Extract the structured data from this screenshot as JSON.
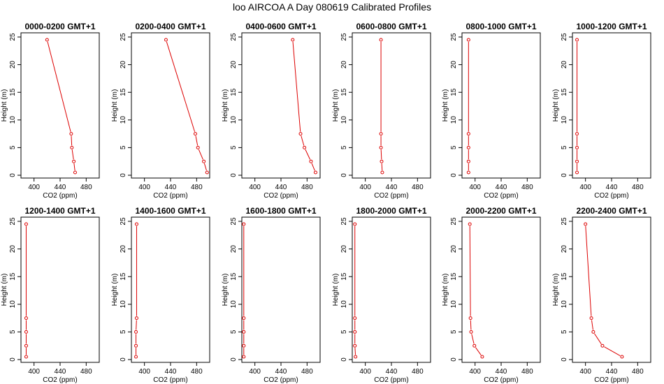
{
  "title": "loo AIRCOA A  Day 080619  Calibrated Profiles",
  "colors": {
    "series": "#dd0000",
    "frame": "#000000"
  },
  "chart_data": [
    {
      "type": "line",
      "title": "0000-0200 GMT+1",
      "xlabel": "CO2 (ppm)",
      "ylabel": "Height (m)",
      "xlim": [
        380,
        500
      ],
      "ylim": [
        0,
        25
      ],
      "xticks": [
        400,
        440,
        480
      ],
      "yticks": [
        0,
        5,
        10,
        15,
        20,
        25
      ],
      "x": [
        420,
        457,
        458,
        461,
        463
      ],
      "y": [
        24.5,
        7.5,
        5,
        2.5,
        0.5
      ]
    },
    {
      "type": "line",
      "title": "0200-0400 GMT+1",
      "xlabel": "CO2 (ppm)",
      "ylabel": "Height (m)",
      "xlim": [
        380,
        500
      ],
      "ylim": [
        0,
        25
      ],
      "xticks": [
        400,
        440,
        480
      ],
      "yticks": [
        0,
        5,
        10,
        15,
        20,
        25
      ],
      "x": [
        433,
        478,
        482,
        491,
        496
      ],
      "y": [
        24.5,
        7.5,
        5,
        2.5,
        0.5
      ]
    },
    {
      "type": "line",
      "title": "0400-0600 GMT+1",
      "xlabel": "CO2 (ppm)",
      "ylabel": "Height (m)",
      "xlim": [
        380,
        500
      ],
      "ylim": [
        0,
        25
      ],
      "xticks": [
        400,
        440,
        480
      ],
      "yticks": [
        0,
        5,
        10,
        15,
        20,
        25
      ],
      "x": [
        458,
        470,
        476,
        486,
        493
      ],
      "y": [
        24.5,
        7.5,
        5,
        2.5,
        0.5
      ]
    },
    {
      "type": "line",
      "title": "0600-0800 GMT+1",
      "xlabel": "CO2 (ppm)",
      "ylabel": "Height (m)",
      "xlim": [
        380,
        500
      ],
      "ylim": [
        0,
        25
      ],
      "xticks": [
        400,
        440,
        480
      ],
      "yticks": [
        0,
        5,
        10,
        15,
        20,
        25
      ],
      "x": [
        424,
        424,
        424,
        425,
        426
      ],
      "y": [
        24.5,
        7.5,
        5,
        2.5,
        0.5
      ]
    },
    {
      "type": "line",
      "title": "0800-1000 GMT+1",
      "xlabel": "CO2 (ppm)",
      "ylabel": "Height (m)",
      "xlim": [
        380,
        500
      ],
      "ylim": [
        0,
        25
      ],
      "xticks": [
        400,
        440,
        480
      ],
      "yticks": [
        0,
        5,
        10,
        15,
        20,
        25
      ],
      "x": [
        390,
        390,
        390,
        390,
        390
      ],
      "y": [
        24.5,
        7.5,
        5,
        2.5,
        0.5
      ]
    },
    {
      "type": "line",
      "title": "1000-1200 GMT+1",
      "xlabel": "CO2 (ppm)",
      "ylabel": "Height (m)",
      "xlim": [
        380,
        500
      ],
      "ylim": [
        0,
        25
      ],
      "xticks": [
        400,
        440,
        480
      ],
      "yticks": [
        0,
        5,
        10,
        15,
        20,
        25
      ],
      "x": [
        387,
        387,
        387,
        387,
        387
      ],
      "y": [
        24.5,
        7.5,
        5,
        2.5,
        0.5
      ]
    },
    {
      "type": "line",
      "title": "1200-1400 GMT+1",
      "xlabel": "CO2 (ppm)",
      "ylabel": "Height (m)",
      "xlim": [
        380,
        500
      ],
      "ylim": [
        0,
        25
      ],
      "xticks": [
        400,
        440,
        480
      ],
      "yticks": [
        0,
        5,
        10,
        15,
        20,
        25
      ],
      "x": [
        388,
        388,
        388,
        388,
        388
      ],
      "y": [
        24.5,
        7.5,
        5,
        2.5,
        0.5
      ]
    },
    {
      "type": "line",
      "title": "1400-1600 GMT+1",
      "xlabel": "CO2 (ppm)",
      "ylabel": "Height (m)",
      "xlim": [
        380,
        500
      ],
      "ylim": [
        0,
        25
      ],
      "xticks": [
        400,
        440,
        480
      ],
      "yticks": [
        0,
        5,
        10,
        15,
        20,
        25
      ],
      "x": [
        388,
        388,
        387,
        387,
        387
      ],
      "y": [
        24.5,
        7.5,
        5,
        2.5,
        0.5
      ]
    },
    {
      "type": "line",
      "title": "1600-1800 GMT+1",
      "xlabel": "CO2 (ppm)",
      "ylabel": "Height (m)",
      "xlim": [
        380,
        500
      ],
      "ylim": [
        0,
        25
      ],
      "xticks": [
        400,
        440,
        480
      ],
      "yticks": [
        0,
        5,
        10,
        15,
        20,
        25
      ],
      "x": [
        383,
        383,
        383,
        383,
        383
      ],
      "y": [
        24.5,
        7.5,
        5,
        2.5,
        0.5
      ]
    },
    {
      "type": "line",
      "title": "1800-2000 GMT+1",
      "xlabel": "CO2 (ppm)",
      "ylabel": "Height (m)",
      "xlim": [
        380,
        500
      ],
      "ylim": [
        0,
        25
      ],
      "xticks": [
        400,
        440,
        480
      ],
      "yticks": [
        0,
        5,
        10,
        15,
        20,
        25
      ],
      "x": [
        384,
        384,
        384,
        384,
        385
      ],
      "y": [
        24.5,
        7.5,
        5,
        2.5,
        0.5
      ]
    },
    {
      "type": "line",
      "title": "2000-2200 GMT+1",
      "xlabel": "CO2 (ppm)",
      "ylabel": "Height (m)",
      "xlim": [
        380,
        500
      ],
      "ylim": [
        0,
        25
      ],
      "xticks": [
        400,
        440,
        480
      ],
      "yticks": [
        0,
        5,
        10,
        15,
        20,
        25
      ],
      "x": [
        392,
        393,
        394,
        399,
        411
      ],
      "y": [
        24.5,
        7.5,
        5,
        2.5,
        0.5
      ]
    },
    {
      "type": "line",
      "title": "2200-2400 GMT+1",
      "xlabel": "CO2 (ppm)",
      "ylabel": "Height (m)",
      "xlim": [
        380,
        500
      ],
      "ylim": [
        0,
        25
      ],
      "xticks": [
        400,
        440,
        480
      ],
      "yticks": [
        0,
        5,
        10,
        15,
        20,
        25
      ],
      "x": [
        400,
        409,
        412,
        426,
        456
      ],
      "y": [
        24.5,
        7.5,
        5,
        2.5,
        0.5
      ]
    }
  ]
}
